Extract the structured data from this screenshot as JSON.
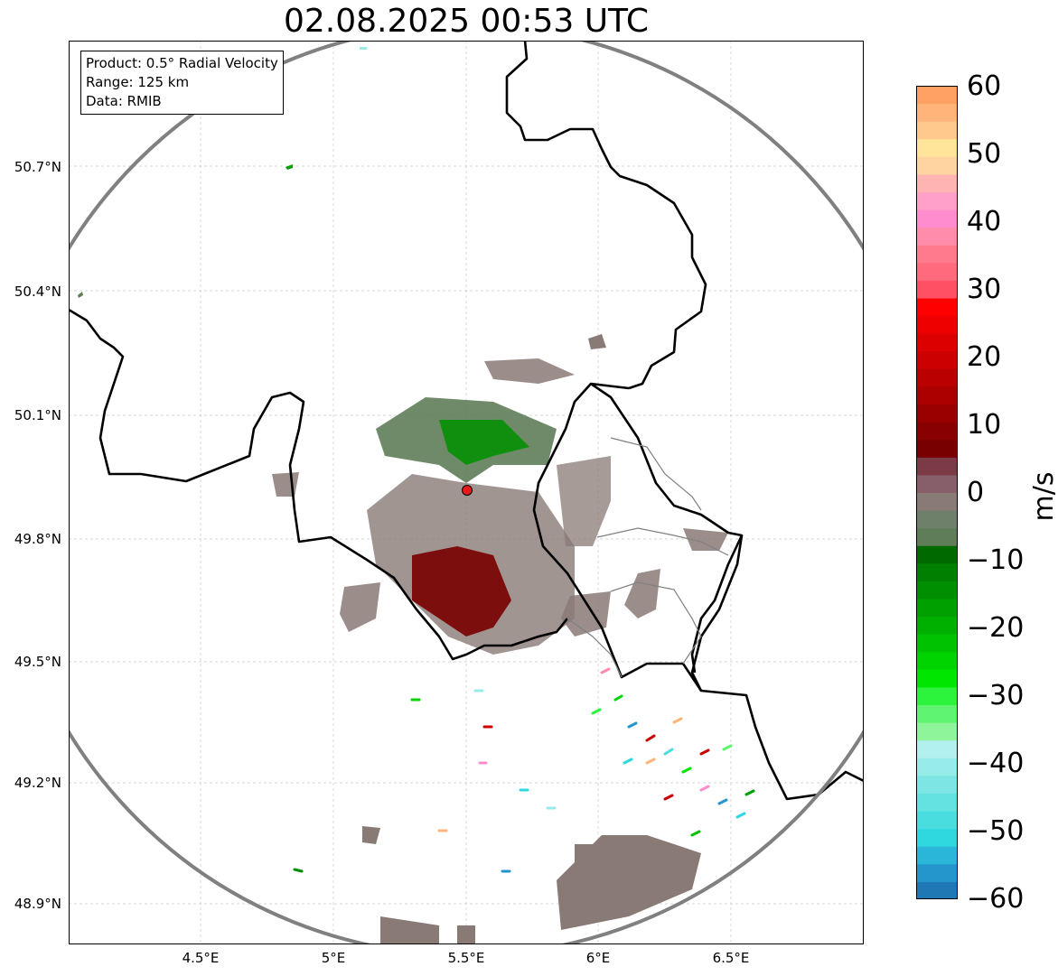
{
  "title": "02.08.2025 00:53 UTC",
  "info": {
    "product": "Product: 0.5° Radial Velocity",
    "range": "Range: 125 km",
    "data": "Data: RMIB"
  },
  "axes": {
    "y_ticks": [
      "50.7°N",
      "50.4°N",
      "50.1°N",
      "49.8°N",
      "49.5°N",
      "49.2°N",
      "48.9°N"
    ],
    "x_ticks": [
      "4.5°E",
      "5°E",
      "5.5°E",
      "6°E",
      "6.5°E"
    ]
  },
  "colorbar": {
    "label": "m/s",
    "ticks": [
      "60",
      "50",
      "40",
      "30",
      "20",
      "10",
      "0",
      "−10",
      "−20",
      "−30",
      "−40",
      "−50",
      "−60"
    ],
    "min": -60,
    "max": 60,
    "colors": [
      "#1f77b4",
      "#2496cc",
      "#29b6d9",
      "#2fd8df",
      "#49dde0",
      "#63e2e1",
      "#7de6e4",
      "#97ebe8",
      "#b1f0ee",
      "#8ff59a",
      "#60f570",
      "#2cf43c",
      "#00e600",
      "#00d400",
      "#00c200",
      "#00b000",
      "#00a000",
      "#008f00",
      "#007f00",
      "#006a00",
      "#5e7d58",
      "#6f806a",
      "#897a76",
      "#865f6a",
      "#7a3a46",
      "#780000",
      "#880000",
      "#990000",
      "#aa0000",
      "#bb0000",
      "#cc0000",
      "#dd0000",
      "#ee0000",
      "#ff0000",
      "#ff5064",
      "#ff6a7c",
      "#ff7a8c",
      "#ff8caa",
      "#ff8ccc",
      "#ffa0c8",
      "#ffb4b4",
      "#ffd4a0",
      "#ffe59a",
      "#ffc88c",
      "#ffb47a",
      "#ffa064"
    ]
  },
  "radar": {
    "site_color": "#e41a1c",
    "range_ring_color": "#808080"
  }
}
